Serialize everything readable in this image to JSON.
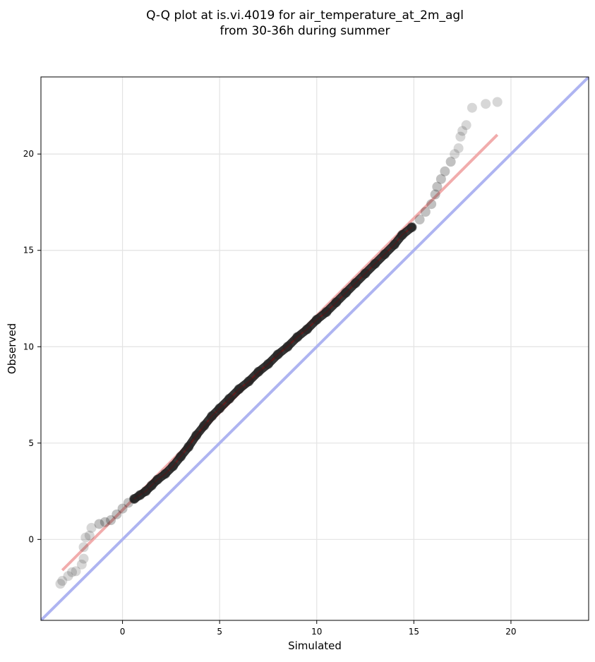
{
  "chart_data": {
    "type": "scatter",
    "title_lines": [
      "Q-Q plot at is.vi.4019 for air_temperature_at_2m_agl",
      "from 30-36h during summer"
    ],
    "xlabel": "Simulated",
    "ylabel": "Observed",
    "xlim": [
      -4.2,
      24.0
    ],
    "ylim": [
      -4.2,
      24.0
    ],
    "xticks": [
      0,
      5,
      10,
      15,
      20
    ],
    "yticks": [
      0,
      5,
      10,
      15,
      20
    ],
    "grid": true,
    "identity_line_color": "#aab0f0",
    "fit_line": {
      "x": [
        -3.1,
        19.3
      ],
      "y": [
        -1.6,
        21.0
      ],
      "color": "#f0a8a8"
    },
    "points": [
      [
        -3.2,
        -2.3
      ],
      [
        -3.1,
        -2.15
      ],
      [
        -2.8,
        -1.9
      ],
      [
        -2.6,
        -1.7
      ],
      [
        -2.4,
        -1.65
      ],
      [
        -2.1,
        -1.3
      ],
      [
        -2.0,
        -1.0
      ],
      [
        -2.0,
        -0.4
      ],
      [
        -1.9,
        0.1
      ],
      [
        -1.7,
        0.2
      ],
      [
        -1.6,
        0.6
      ],
      [
        -1.2,
        0.8
      ],
      [
        -0.9,
        0.9
      ],
      [
        -0.6,
        1.0
      ],
      [
        -0.3,
        1.3
      ],
      [
        0.0,
        1.6
      ],
      [
        0.3,
        1.9
      ],
      [
        0.6,
        2.1
      ],
      [
        0.9,
        2.3
      ],
      [
        1.2,
        2.5
      ],
      [
        1.5,
        2.8
      ],
      [
        1.8,
        3.1
      ],
      [
        2.2,
        3.4
      ],
      [
        2.6,
        3.8
      ],
      [
        3.0,
        4.3
      ],
      [
        3.4,
        4.8
      ],
      [
        3.8,
        5.4
      ],
      [
        4.2,
        5.9
      ],
      [
        4.6,
        6.4
      ],
      [
        5.0,
        6.8
      ],
      [
        5.5,
        7.3
      ],
      [
        6.0,
        7.8
      ],
      [
        6.5,
        8.2
      ],
      [
        7.0,
        8.7
      ],
      [
        7.5,
        9.1
      ],
      [
        8.0,
        9.6
      ],
      [
        8.5,
        10.0
      ],
      [
        9.0,
        10.5
      ],
      [
        9.5,
        10.9
      ],
      [
        10.0,
        11.4
      ],
      [
        10.5,
        11.8
      ],
      [
        11.0,
        12.3
      ],
      [
        11.5,
        12.8
      ],
      [
        12.0,
        13.3
      ],
      [
        12.5,
        13.8
      ],
      [
        13.0,
        14.3
      ],
      [
        13.5,
        14.8
      ],
      [
        14.0,
        15.3
      ],
      [
        14.4,
        15.8
      ],
      [
        14.9,
        16.2
      ],
      [
        15.3,
        16.6
      ],
      [
        15.6,
        17.0
      ],
      [
        15.9,
        17.4
      ],
      [
        16.1,
        17.9
      ],
      [
        16.2,
        18.3
      ],
      [
        16.4,
        18.7
      ],
      [
        16.6,
        19.1
      ],
      [
        16.9,
        19.6
      ],
      [
        17.1,
        20.0
      ],
      [
        17.3,
        20.3
      ],
      [
        17.4,
        20.9
      ],
      [
        17.5,
        21.2
      ],
      [
        17.7,
        21.5
      ],
      [
        18.0,
        22.4
      ],
      [
        18.7,
        22.6
      ],
      [
        19.3,
        22.7
      ]
    ]
  }
}
